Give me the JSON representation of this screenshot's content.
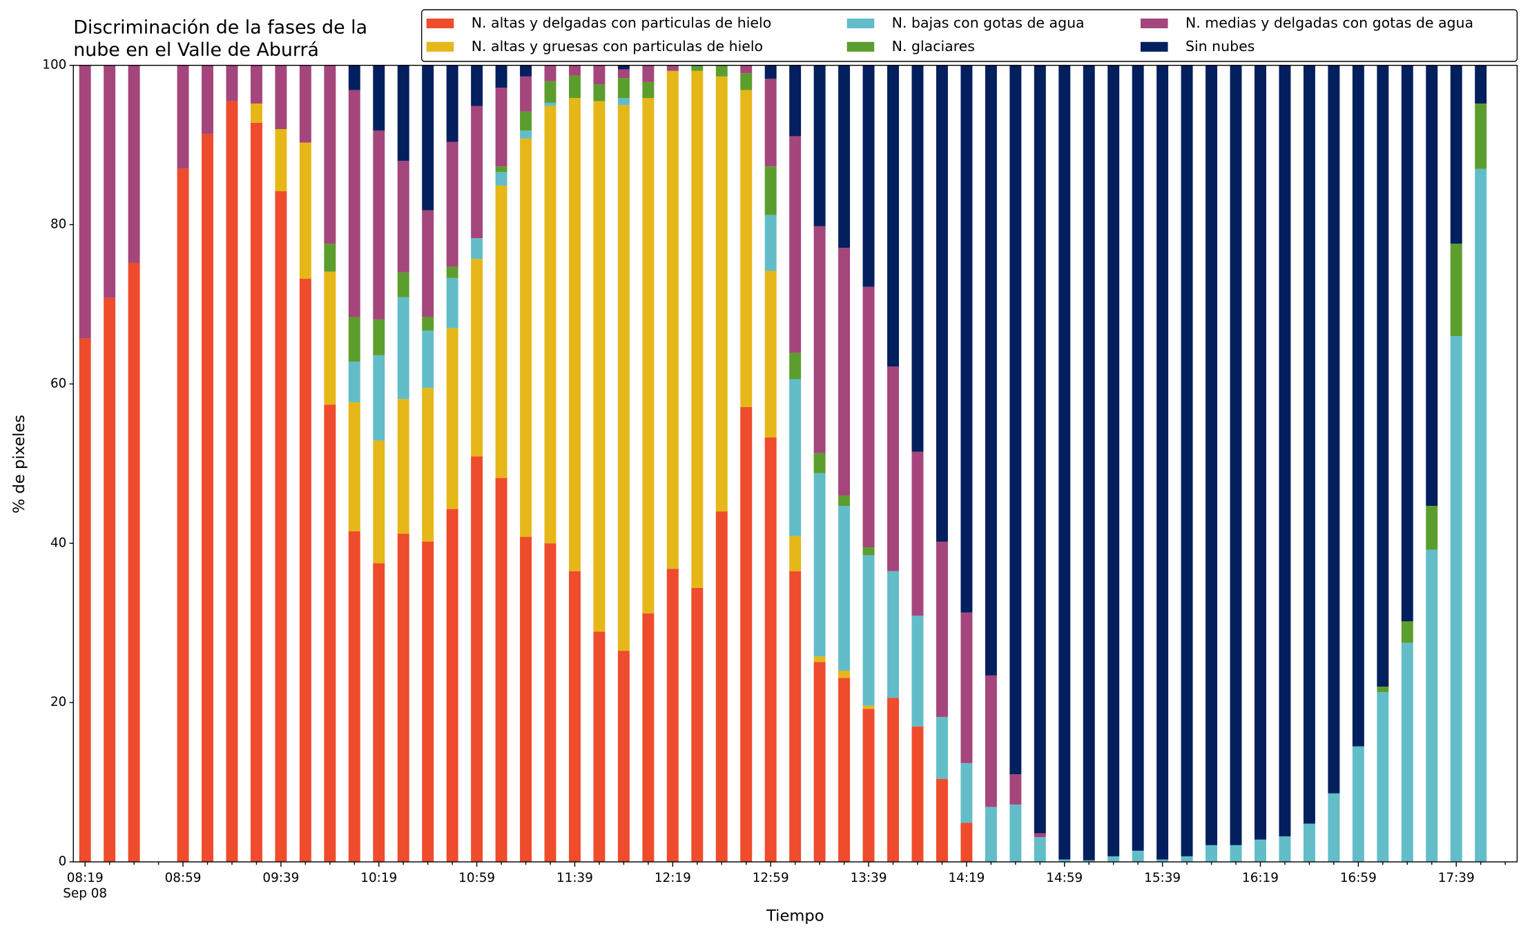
{
  "chart_data": {
    "type": "stacked_bar",
    "title": [
      "Discriminación de la fases de la",
      "nube en el Valle de Aburrá"
    ],
    "xlabel": "Tiempo",
    "ylabel": "% de pixeles",
    "x_sublabel": "Sep 08",
    "categories": [
      "08:19",
      null,
      null,
      null,
      "08:59",
      null,
      null,
      null,
      "09:39",
      null,
      null,
      null,
      "10:19",
      null,
      null,
      null,
      "10:59",
      null,
      null,
      null,
      "11:39",
      null,
      null,
      null,
      "12:19",
      null,
      null,
      null,
      "12:59",
      null,
      null,
      null,
      "13:39",
      null,
      null,
      null,
      "14:19",
      null,
      null,
      null,
      "14:59",
      null,
      null,
      null,
      "15:39",
      null,
      null,
      null,
      "16:19",
      null,
      null,
      null,
      "16:59",
      null,
      null,
      null,
      "17:39",
      null
    ],
    "ylim": [
      0,
      100
    ],
    "yticks": [
      0,
      20,
      40,
      60,
      80,
      100
    ],
    "legend_position": "top",
    "series": [
      {
        "name": "N. altas y delgadas con particulas de hielo",
        "color": "#ee4c2c",
        "values": [
          65.7,
          70.8,
          75.2,
          null,
          87,
          91.4,
          95.5,
          92.8,
          84.2,
          73.2,
          57.4,
          41.5,
          37.5,
          41.2,
          40.2,
          44.3,
          50.9,
          48.2,
          40.8,
          40,
          36.5,
          28.9,
          26.5,
          31.2,
          36.8,
          34.4,
          44,
          57.1,
          53.3,
          36.5,
          25.1,
          23.1,
          19.2,
          20.6,
          17,
          10.4,
          4.9,
          0,
          0,
          0,
          0,
          0,
          0,
          0,
          0,
          0,
          0,
          0,
          0,
          0,
          0,
          0,
          0,
          0,
          0,
          0,
          0,
          0
        ]
      },
      {
        "name": "N. altas y gruesas con particulas de hielo",
        "color": "#e6b718",
        "values": [
          0,
          0,
          0,
          null,
          0,
          0,
          0,
          2.4,
          7.8,
          17.1,
          16.7,
          16.2,
          15.4,
          16.9,
          19.3,
          22.7,
          24.8,
          36.7,
          50,
          54.9,
          59.4,
          66.6,
          68.5,
          64.7,
          62.5,
          64.9,
          54.6,
          39.8,
          20.9,
          4.4,
          0.7,
          0.9,
          0.4,
          0,
          0,
          0,
          0,
          0,
          0,
          0,
          0,
          0,
          0,
          0,
          0,
          0,
          0,
          0,
          0,
          0,
          0,
          0,
          0,
          0,
          0,
          0,
          0,
          0
        ]
      },
      {
        "name": "N. bajas con gotas de agua",
        "color": "#62bdc9",
        "values": [
          0,
          0,
          0,
          null,
          0,
          0,
          0,
          0,
          0,
          0,
          0,
          5.1,
          10.7,
          12.8,
          7.2,
          6.3,
          2.6,
          1.7,
          1,
          0.4,
          0,
          0,
          0.9,
          0,
          0,
          0,
          0,
          0,
          7,
          19.7,
          23,
          20.7,
          18.9,
          15.9,
          13.9,
          7.8,
          7.5,
          6.9,
          7.2,
          3.1,
          0.3,
          0.2,
          0.7,
          1.4,
          0.3,
          0.7,
          2.1,
          2.1,
          2.8,
          3.2,
          4.8,
          8.6,
          14.5,
          21.3,
          27.5,
          39.2,
          66,
          87
        ]
      },
      {
        "name": "N. glaciares",
        "color": "#5c9e2d",
        "values": [
          0,
          0,
          0,
          null,
          0,
          0,
          0,
          0,
          0,
          0,
          3.5,
          5.6,
          4.5,
          3.1,
          1.7,
          1.4,
          0,
          0.7,
          2.4,
          2.7,
          2.8,
          2.1,
          2.5,
          2,
          0,
          0.7,
          1.4,
          2.1,
          6.1,
          3.3,
          2.5,
          1.3,
          1,
          0,
          0,
          0,
          0,
          0,
          0,
          0,
          0,
          0,
          0,
          0,
          0,
          0,
          0,
          0,
          0,
          0,
          0,
          0,
          0,
          0.7,
          2.7,
          5.5,
          11.6,
          8.2
        ]
      },
      {
        "name": "N. medias y delgadas con gotas de agua",
        "color": "#a4467b",
        "values": [
          34.3,
          29.2,
          24.8,
          null,
          13,
          8.6,
          4.5,
          4.8,
          8,
          9.7,
          22.4,
          28.5,
          23.7,
          14,
          13.4,
          15.7,
          16.6,
          9.9,
          4.4,
          2,
          1.3,
          2.4,
          1.1,
          2.1,
          0.7,
          0,
          0,
          1,
          11,
          27.2,
          28.5,
          31.1,
          32.7,
          25.7,
          20.6,
          22,
          18.9,
          16.5,
          3.8,
          0.5,
          0,
          0,
          0,
          0,
          0,
          0,
          0,
          0,
          0,
          0,
          0,
          0,
          0,
          0,
          0,
          0,
          0,
          0
        ]
      },
      {
        "name": "Sin nubes",
        "color": "#031f5e",
        "values": [
          0,
          0,
          0,
          null,
          0,
          0,
          0,
          0,
          0,
          0,
          0,
          3.1,
          8.2,
          12,
          18.2,
          9.6,
          5.1,
          2.8,
          1.4,
          0,
          0,
          0,
          0.5,
          0,
          0,
          0,
          0,
          0,
          1.7,
          8.9,
          20.2,
          22.9,
          27.8,
          37.8,
          48.5,
          59.8,
          68.7,
          76.6,
          89,
          96.4,
          99.7,
          99.8,
          99.3,
          98.6,
          99.7,
          99.3,
          97.9,
          97.9,
          97.2,
          96.8,
          95.2,
          91.4,
          85.5,
          78,
          69.8,
          55.3,
          22.4,
          4.8
        ]
      }
    ]
  }
}
